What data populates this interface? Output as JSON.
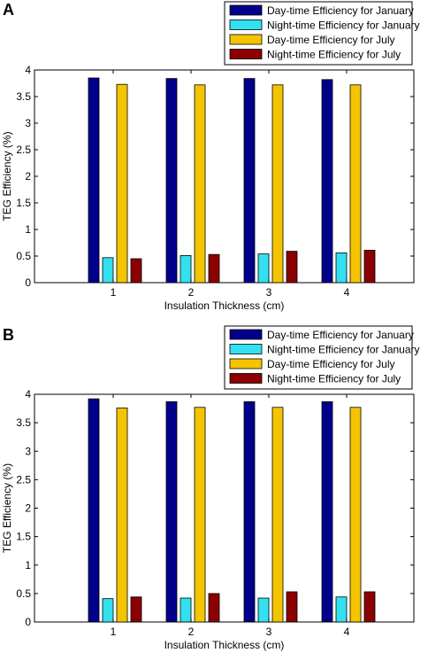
{
  "colors": {
    "day_january": "#00008b",
    "night_january": "#33e0f0",
    "day_july": "#f5c400",
    "night_july": "#8b0000"
  },
  "chart_data": [
    {
      "panel": "A",
      "type": "bar",
      "categories": [
        "1",
        "2",
        "3",
        "4"
      ],
      "series": [
        {
          "name": "Day-time Efficiency for January",
          "values": [
            3.85,
            3.84,
            3.84,
            3.82
          ]
        },
        {
          "name": "Night-time Efficiency for January",
          "values": [
            0.47,
            0.51,
            0.54,
            0.56
          ]
        },
        {
          "name": "Day-time Efficiency for July",
          "values": [
            3.73,
            3.72,
            3.72,
            3.72
          ]
        },
        {
          "name": "Night-time Efficiency for July",
          "values": [
            0.45,
            0.53,
            0.59,
            0.61
          ]
        }
      ],
      "xlabel": "Insulation Thickness (cm)",
      "ylabel": "TEG Efficiency (%)",
      "ylim": [
        0,
        4
      ],
      "yticks": [
        "0",
        "0.5",
        "1",
        "1.5",
        "2",
        "2.5",
        "3",
        "3.5",
        "4"
      ],
      "legend": "top-right",
      "grid": false
    },
    {
      "panel": "B",
      "type": "bar",
      "categories": [
        "1",
        "2",
        "3",
        "4"
      ],
      "series": [
        {
          "name": "Day-time Efficiency for January",
          "values": [
            3.92,
            3.87,
            3.87,
            3.87
          ]
        },
        {
          "name": "Night-time Efficiency for January",
          "values": [
            0.41,
            0.42,
            0.42,
            0.44
          ]
        },
        {
          "name": "Day-time Efficiency for July",
          "values": [
            3.76,
            3.77,
            3.77,
            3.77
          ]
        },
        {
          "name": "Night-time Efficiency for July",
          "values": [
            0.44,
            0.5,
            0.53,
            0.53
          ]
        }
      ],
      "xlabel": "Insulation Thickness (cm)",
      "ylabel": "TEG Efficiency (%)",
      "ylim": [
        0,
        4
      ],
      "yticks": [
        "0",
        "0.5",
        "1",
        "1.5",
        "2",
        "2.5",
        "3",
        "3.5",
        "4"
      ],
      "legend": "top-right",
      "grid": false
    }
  ]
}
